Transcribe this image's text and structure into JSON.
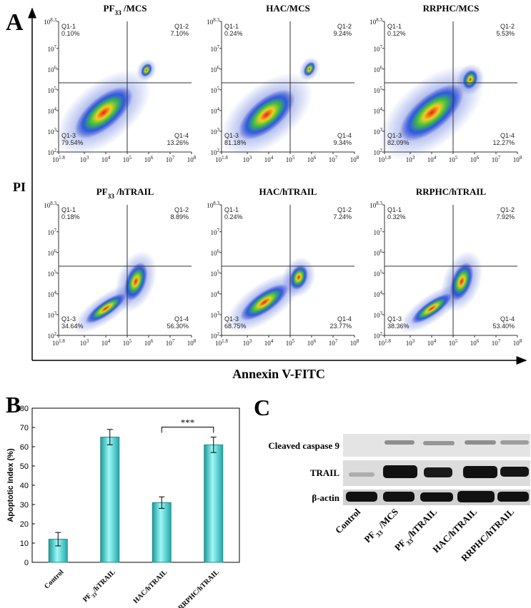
{
  "panel_labels": [
    "A",
    "B",
    "C"
  ],
  "flow": {
    "y_axis_title": "PI",
    "x_axis_title": "Annexin V-FITC",
    "tick_base": "10",
    "x_exponents": [
      "1.8",
      "3",
      "4",
      "5",
      "6",
      "7",
      "8"
    ],
    "y_exponents": [
      "2",
      "3",
      "4",
      "5",
      "6",
      "7",
      "8.3"
    ],
    "quadrant_names": [
      "Q1-1",
      "Q1-2",
      "Q1-3",
      "Q1-4"
    ],
    "plots": [
      {
        "title": "PF33 /MCS",
        "quadrants": [
          "0.10%",
          "7.10%",
          "79.54%",
          "13.26%"
        ]
      },
      {
        "title": "HAC/MCS",
        "quadrants": [
          "0.24%",
          "9.24%",
          "81.18%",
          "9.34%"
        ]
      },
      {
        "title": "RRPHC/MCS",
        "quadrants": [
          "0.12%",
          "5.53%",
          "82.09%",
          "12.27%"
        ]
      },
      {
        "title": "PF33 /hTRAIL",
        "quadrants": [
          "0.18%",
          "8.89%",
          "34.64%",
          "56.30%"
        ]
      },
      {
        "title": "HAC/hTRAIL",
        "quadrants": [
          "0.24%",
          "7.24%",
          "68.75%",
          "23.77%"
        ]
      },
      {
        "title": "RRPHC/hTRAIL",
        "quadrants": [
          "0.32%",
          "7.92%",
          "38.36%",
          "53.40%"
        ]
      }
    ]
  },
  "chart_data": {
    "type": "bar",
    "ylabel": "Apoptotic Index (%)",
    "categories": [
      "Control",
      "PF33/hTRAIL",
      "HAC/hTRAIL",
      "RRPHC/hTRAIL"
    ],
    "values": [
      12,
      65,
      31,
      61
    ],
    "errors": [
      3.5,
      4,
      3,
      4
    ],
    "color": "#5ee6e6",
    "ylim": [
      0,
      80
    ],
    "yticks": [
      0,
      10,
      20,
      30,
      40,
      50,
      60,
      70,
      80
    ],
    "significance": {
      "text": "***",
      "categories": [
        "HAC/hTRAIL",
        "RRPHC/hTRAIL"
      ]
    }
  },
  "blot": {
    "rows": [
      "Cleaved caspase 9",
      "TRAIL",
      "β-actin"
    ],
    "lanes": [
      "Control",
      "PF33 /MCS",
      "PF33/hTRAIL",
      "HAC/hTRAIL",
      "RRPHC/hTRAIL"
    ]
  }
}
